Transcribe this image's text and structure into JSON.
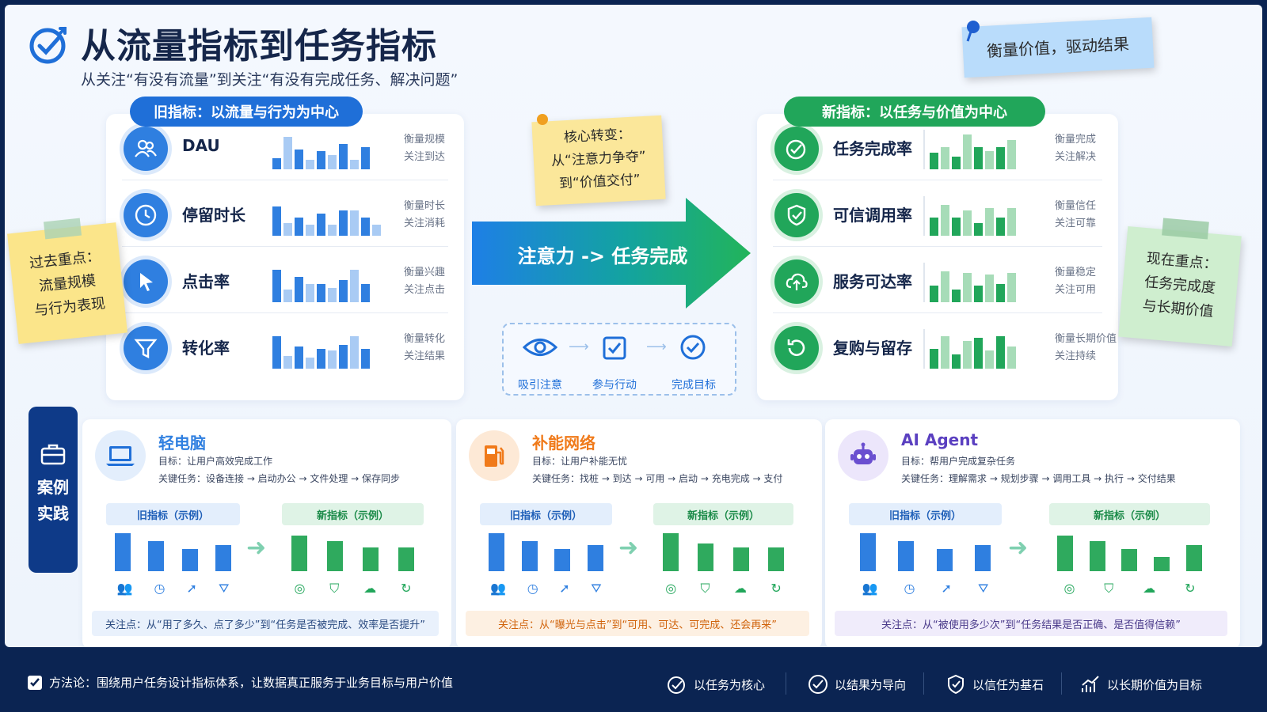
{
  "header": {
    "title": "从流量指标到任务指标",
    "subtitle": "从关注“有没有流量”到关注“有没有完成任务、解决问题”"
  },
  "notes": {
    "top_right": "衡量价值，驱动结果",
    "center": [
      "核心转变：",
      "从“注意力争夺”",
      "到“价值交付”"
    ],
    "left": [
      "过去重点：",
      "流量规模",
      "与行为表现"
    ],
    "right": [
      "现在重点：",
      "任务完成度",
      "与长期价值"
    ]
  },
  "old_panel": {
    "label": "旧指标：以流量与行为为中心",
    "rows": [
      {
        "name": "DAU",
        "desc": [
          "衡量规模",
          "关注到达"
        ],
        "icon": "users-icon",
        "bars": [
          0.3,
          0.9,
          0.55,
          0.25,
          0.5,
          0.4,
          0.7,
          0.25,
          0.6
        ]
      },
      {
        "name": "停留时长",
        "desc": [
          "衡量时长",
          "关注消耗"
        ],
        "icon": "clock-icon",
        "bars": [
          0.8,
          0.35,
          0.5,
          0.3,
          0.6,
          0.3,
          0.7,
          0.7,
          0.5,
          0.3
        ]
      },
      {
        "name": "点击率",
        "desc": [
          "衡量兴趣",
          "关注点击"
        ],
        "icon": "cursor-icon",
        "bars": [
          0.9,
          0.35,
          0.7,
          0.5,
          0.5,
          0.4,
          0.6,
          0.9,
          0.5
        ]
      },
      {
        "name": "转化率",
        "desc": [
          "衡量转化",
          "关注结果"
        ],
        "icon": "funnel-icon",
        "bars": [
          0.9,
          0.35,
          0.6,
          0.3,
          0.55,
          0.5,
          0.65,
          0.9,
          0.55
        ]
      }
    ]
  },
  "new_panel": {
    "label": "新指标：以任务与价值为中心",
    "rows": [
      {
        "name": "任务完成率",
        "desc": [
          "衡量完成",
          "关注解决"
        ],
        "icon": "target-check-icon",
        "bars": [
          0.45,
          0.6,
          0.35,
          0.95,
          0.6,
          0.5,
          0.6,
          0.8
        ]
      },
      {
        "name": "可信调用率",
        "desc": [
          "衡量信任",
          "关注可靠"
        ],
        "icon": "shield-check-icon",
        "bars": [
          0.5,
          0.85,
          0.5,
          0.7,
          0.35,
          0.75,
          0.5,
          0.75
        ]
      },
      {
        "name": "服务可达率",
        "desc": [
          "衡量稳定",
          "关注可用"
        ],
        "icon": "cloud-upload-icon",
        "bars": [
          0.45,
          0.85,
          0.35,
          0.8,
          0.45,
          0.75,
          0.5,
          0.8
        ]
      },
      {
        "name": "复购与留存",
        "desc": [
          "衡量长期价值",
          "关注持续"
        ],
        "icon": "refresh-icon",
        "bars": [
          0.55,
          0.9,
          0.4,
          0.75,
          0.85,
          0.5,
          0.9,
          0.6
        ]
      }
    ]
  },
  "transition": {
    "arrow_text": "注意力 -> 任务完成",
    "steps": [
      "吸引注意",
      "参与行动",
      "完成目标"
    ]
  },
  "cases_section": {
    "label": [
      "案例",
      "实践"
    ]
  },
  "cases": [
    {
      "title": "轻电脑",
      "goal": "目标：让用户高效完成工作",
      "tasks": "关键任务：设备连接 → 启动办公 → 文件处理 → 保存同步",
      "old_label": "旧指标（示例）",
      "new_label": "新指标（示例）",
      "old_bars": [
        0.95,
        0.75,
        0.55,
        0.65
      ],
      "new_bars": [
        0.9,
        0.75,
        0.6,
        0.6
      ],
      "focus": "关注点：从“用了多久、点了多少”到“任务是否被完成、效率是否提升”",
      "theme": "#2f7fe0",
      "focus_bg": "#e9f1fc",
      "focus_color": "#2a4a80",
      "icon": "laptop-icon"
    },
    {
      "title": "补能网络",
      "goal": "目标：让用户补能无忧",
      "tasks": "关键任务：找桩 → 到达 → 可用 → 启动 → 充电完成 → 支付",
      "old_label": "旧指标（示例）",
      "new_label": "新指标（示例）",
      "old_bars": [
        0.95,
        0.75,
        0.55,
        0.65
      ],
      "new_bars": [
        0.95,
        0.7,
        0.6,
        0.6
      ],
      "focus": "关注点：从“曝光与点击”到“可用、可达、可完成、还会再来”",
      "theme": "#f07a1a",
      "focus_bg": "#fdf0e2",
      "focus_color": "#d0620a",
      "icon": "fuel-pump-icon"
    },
    {
      "title": "AI Agent",
      "goal": "目标：帮用户完成复杂任务",
      "tasks": "关键任务：理解需求 → 规划步骤 → 调用工具 → 执行 → 交付结果",
      "old_label": "旧指标（示例）",
      "new_label": "新指标（示例）",
      "old_bars": [
        0.95,
        0.75,
        0.55,
        0.65
      ],
      "new_bars": [
        0.9,
        0.75,
        0.55,
        0.35,
        0.65
      ],
      "focus": "关注点：从“被使用多少次”到“任务结果是否正确、是否值得信赖”",
      "theme": "#5a3fc0",
      "focus_bg": "#f0ecfb",
      "focus_color": "#4a3a8a",
      "icon": "robot-icon"
    }
  ],
  "footer": {
    "method": "方法论：围绕用户任务设计指标体系，让数据真正服务于业务目标与用户价值",
    "items": [
      "以任务为核心",
      "以结果为导向",
      "以信任为基石",
      "以长期价值为目标"
    ]
  },
  "colors": {
    "old_blue": "#2f7fe0",
    "new_green": "#21a65a",
    "navy": "#0b2452"
  }
}
